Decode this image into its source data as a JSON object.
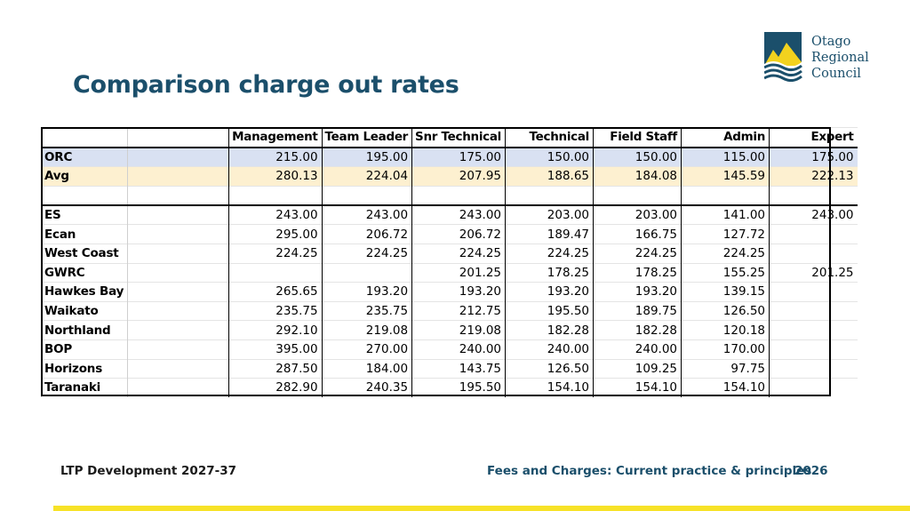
{
  "title": "Comparison charge out rates",
  "logo": {
    "line1": "Otago",
    "line2": "Regional",
    "line3": "Council"
  },
  "table": {
    "headers": [
      "",
      "",
      "Management",
      "Team Leader",
      "Snr Technical",
      "Technical",
      "Field Staff",
      "Admin",
      "Expert"
    ],
    "summary_rows": [
      {
        "name": "ORC",
        "values": [
          "215.00",
          "195.00",
          "175.00",
          "150.00",
          "150.00",
          "115.00",
          "175.00"
        ]
      },
      {
        "name": "Avg",
        "values": [
          "280.13",
          "224.04",
          "207.95",
          "188.65",
          "184.08",
          "145.59",
          "222.13"
        ]
      }
    ],
    "rows": [
      {
        "name": "ES",
        "values": [
          "243.00",
          "243.00",
          "243.00",
          "203.00",
          "203.00",
          "141.00",
          "243.00"
        ]
      },
      {
        "name": "Ecan",
        "values": [
          "295.00",
          "206.72",
          "206.72",
          "189.47",
          "166.75",
          "127.72",
          ""
        ]
      },
      {
        "name": "West Coast",
        "values": [
          "224.25",
          "224.25",
          "224.25",
          "224.25",
          "224.25",
          "224.25",
          ""
        ]
      },
      {
        "name": "GWRC",
        "values": [
          "",
          "",
          "201.25",
          "178.25",
          "178.25",
          "155.25",
          "201.25"
        ]
      },
      {
        "name": "Hawkes Bay",
        "values": [
          "265.65",
          "193.20",
          "193.20",
          "193.20",
          "193.20",
          "139.15",
          ""
        ]
      },
      {
        "name": "Waikato",
        "values": [
          "235.75",
          "235.75",
          "212.75",
          "195.50",
          "189.75",
          "126.50",
          ""
        ]
      },
      {
        "name": "Northland",
        "values": [
          "292.10",
          "219.08",
          "219.08",
          "182.28",
          "182.28",
          "120.18",
          ""
        ]
      },
      {
        "name": "BOP",
        "values": [
          "395.00",
          "270.00",
          "240.00",
          "240.00",
          "240.00",
          "170.00",
          ""
        ]
      },
      {
        "name": "Horizons",
        "values": [
          "287.50",
          "184.00",
          "143.75",
          "126.50",
          "109.25",
          "97.75",
          ""
        ]
      },
      {
        "name": "Taranaki",
        "values": [
          "282.90",
          "240.35",
          "195.50",
          "154.10",
          "154.10",
          "154.10",
          ""
        ]
      }
    ]
  },
  "footer": {
    "left": "LTP Development 2027-37",
    "middle": "Fees and Charges: Current practice & principles",
    "right": "2026"
  },
  "colors": {
    "title": "#1b4f6b",
    "orc_row": "#d9e1f2",
    "avg_row": "#fdf0d0",
    "footer_bar": "#f7e227"
  }
}
